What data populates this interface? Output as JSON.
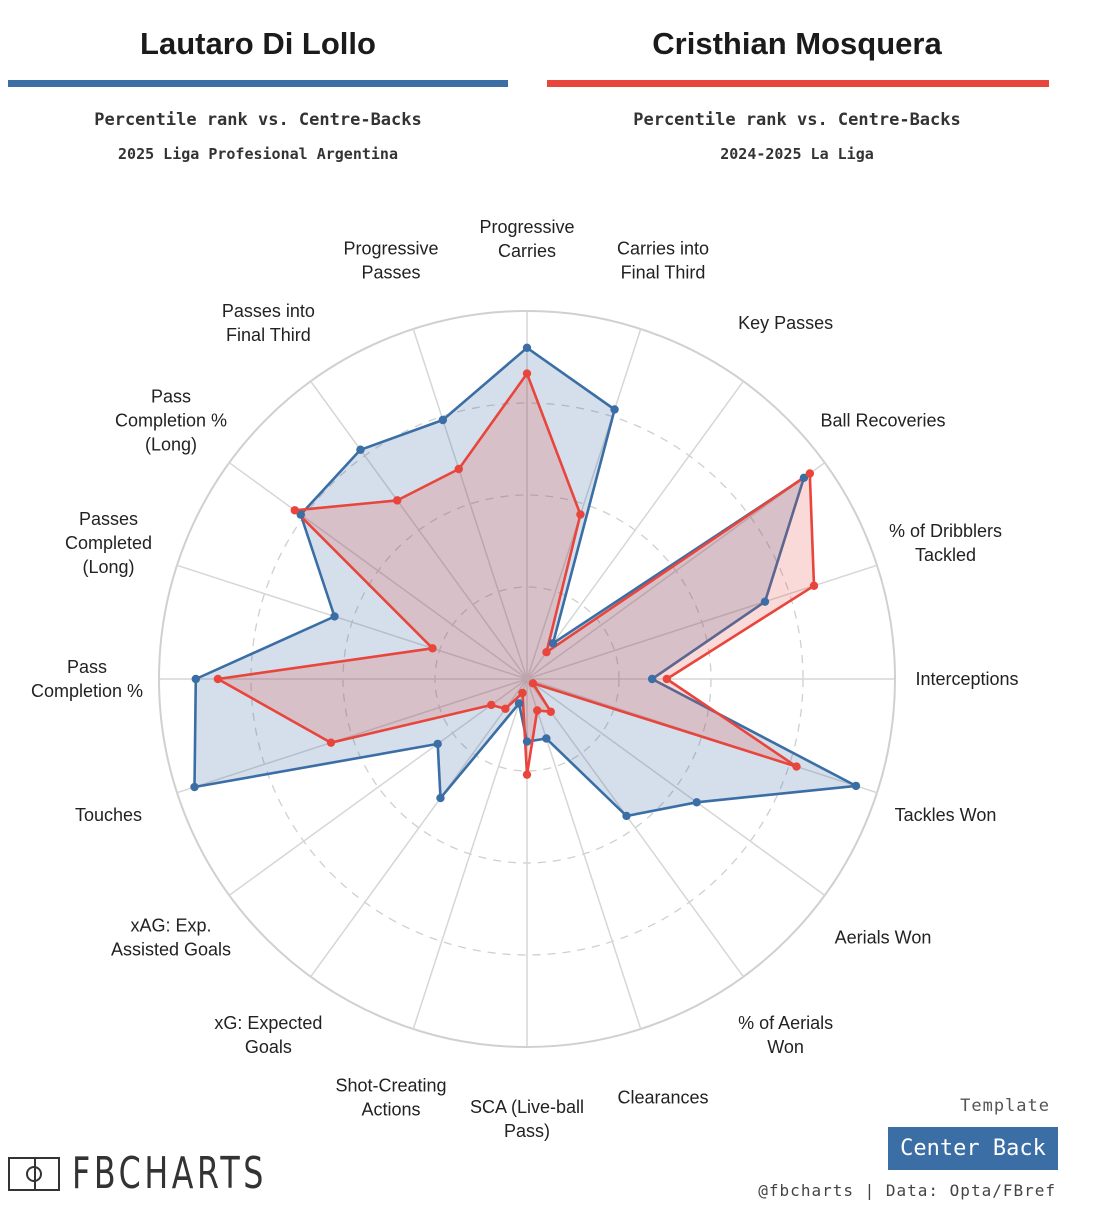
{
  "players": [
    {
      "name": "Lautaro Di Lollo",
      "subtitle": "Percentile rank vs. Centre-Backs",
      "competition": "2025 Liga Profesional Argentina",
      "color": "#3a6ea5"
    },
    {
      "name": "Cristhian Mosquera",
      "subtitle": "Percentile rank vs. Centre-Backs",
      "competition": "2024-2025 La Liga",
      "color": "#e8453c"
    }
  ],
  "chart_data": {
    "type": "radar",
    "range": [
      0,
      100
    ],
    "grid": true,
    "axes": [
      "Progressive Carries",
      "Carries into Final Third",
      "Key Passes",
      "Ball Recoveries",
      "% of Dribblers Tackled",
      "Interceptions",
      "Tackles Won",
      "Aerials Won",
      "% of Aerials Won",
      "Clearances",
      "SCA (Live-ball Pass)",
      "Shot-Creating Actions",
      "xG: Expected Goals",
      "xAG: Exp. Assisted Goals",
      "Touches",
      "Pass Completion %",
      "Passes Completed (Long)",
      "Pass Completion % (Long)",
      "Passes into Final Third",
      "Progressive Passes"
    ],
    "series": [
      {
        "name": "Lautaro Di Lollo",
        "color": "#3a6ea5",
        "values": [
          90,
          77,
          12,
          93,
          68,
          34,
          94,
          57,
          46,
          17,
          17,
          7,
          40,
          30,
          95,
          90,
          55,
          76,
          77,
          74
        ]
      },
      {
        "name": "Cristhian Mosquera",
        "color": "#e8453c",
        "values": [
          83,
          47,
          9,
          95,
          82,
          38,
          77,
          2,
          11,
          9,
          26,
          4,
          10,
          12,
          56,
          84,
          27,
          78,
          60,
          60
        ]
      }
    ]
  },
  "template": {
    "label": "Template",
    "value": "Center Back"
  },
  "brand": "FBCHARTS",
  "credit": "@fbcharts | Data: Opta/FBref"
}
